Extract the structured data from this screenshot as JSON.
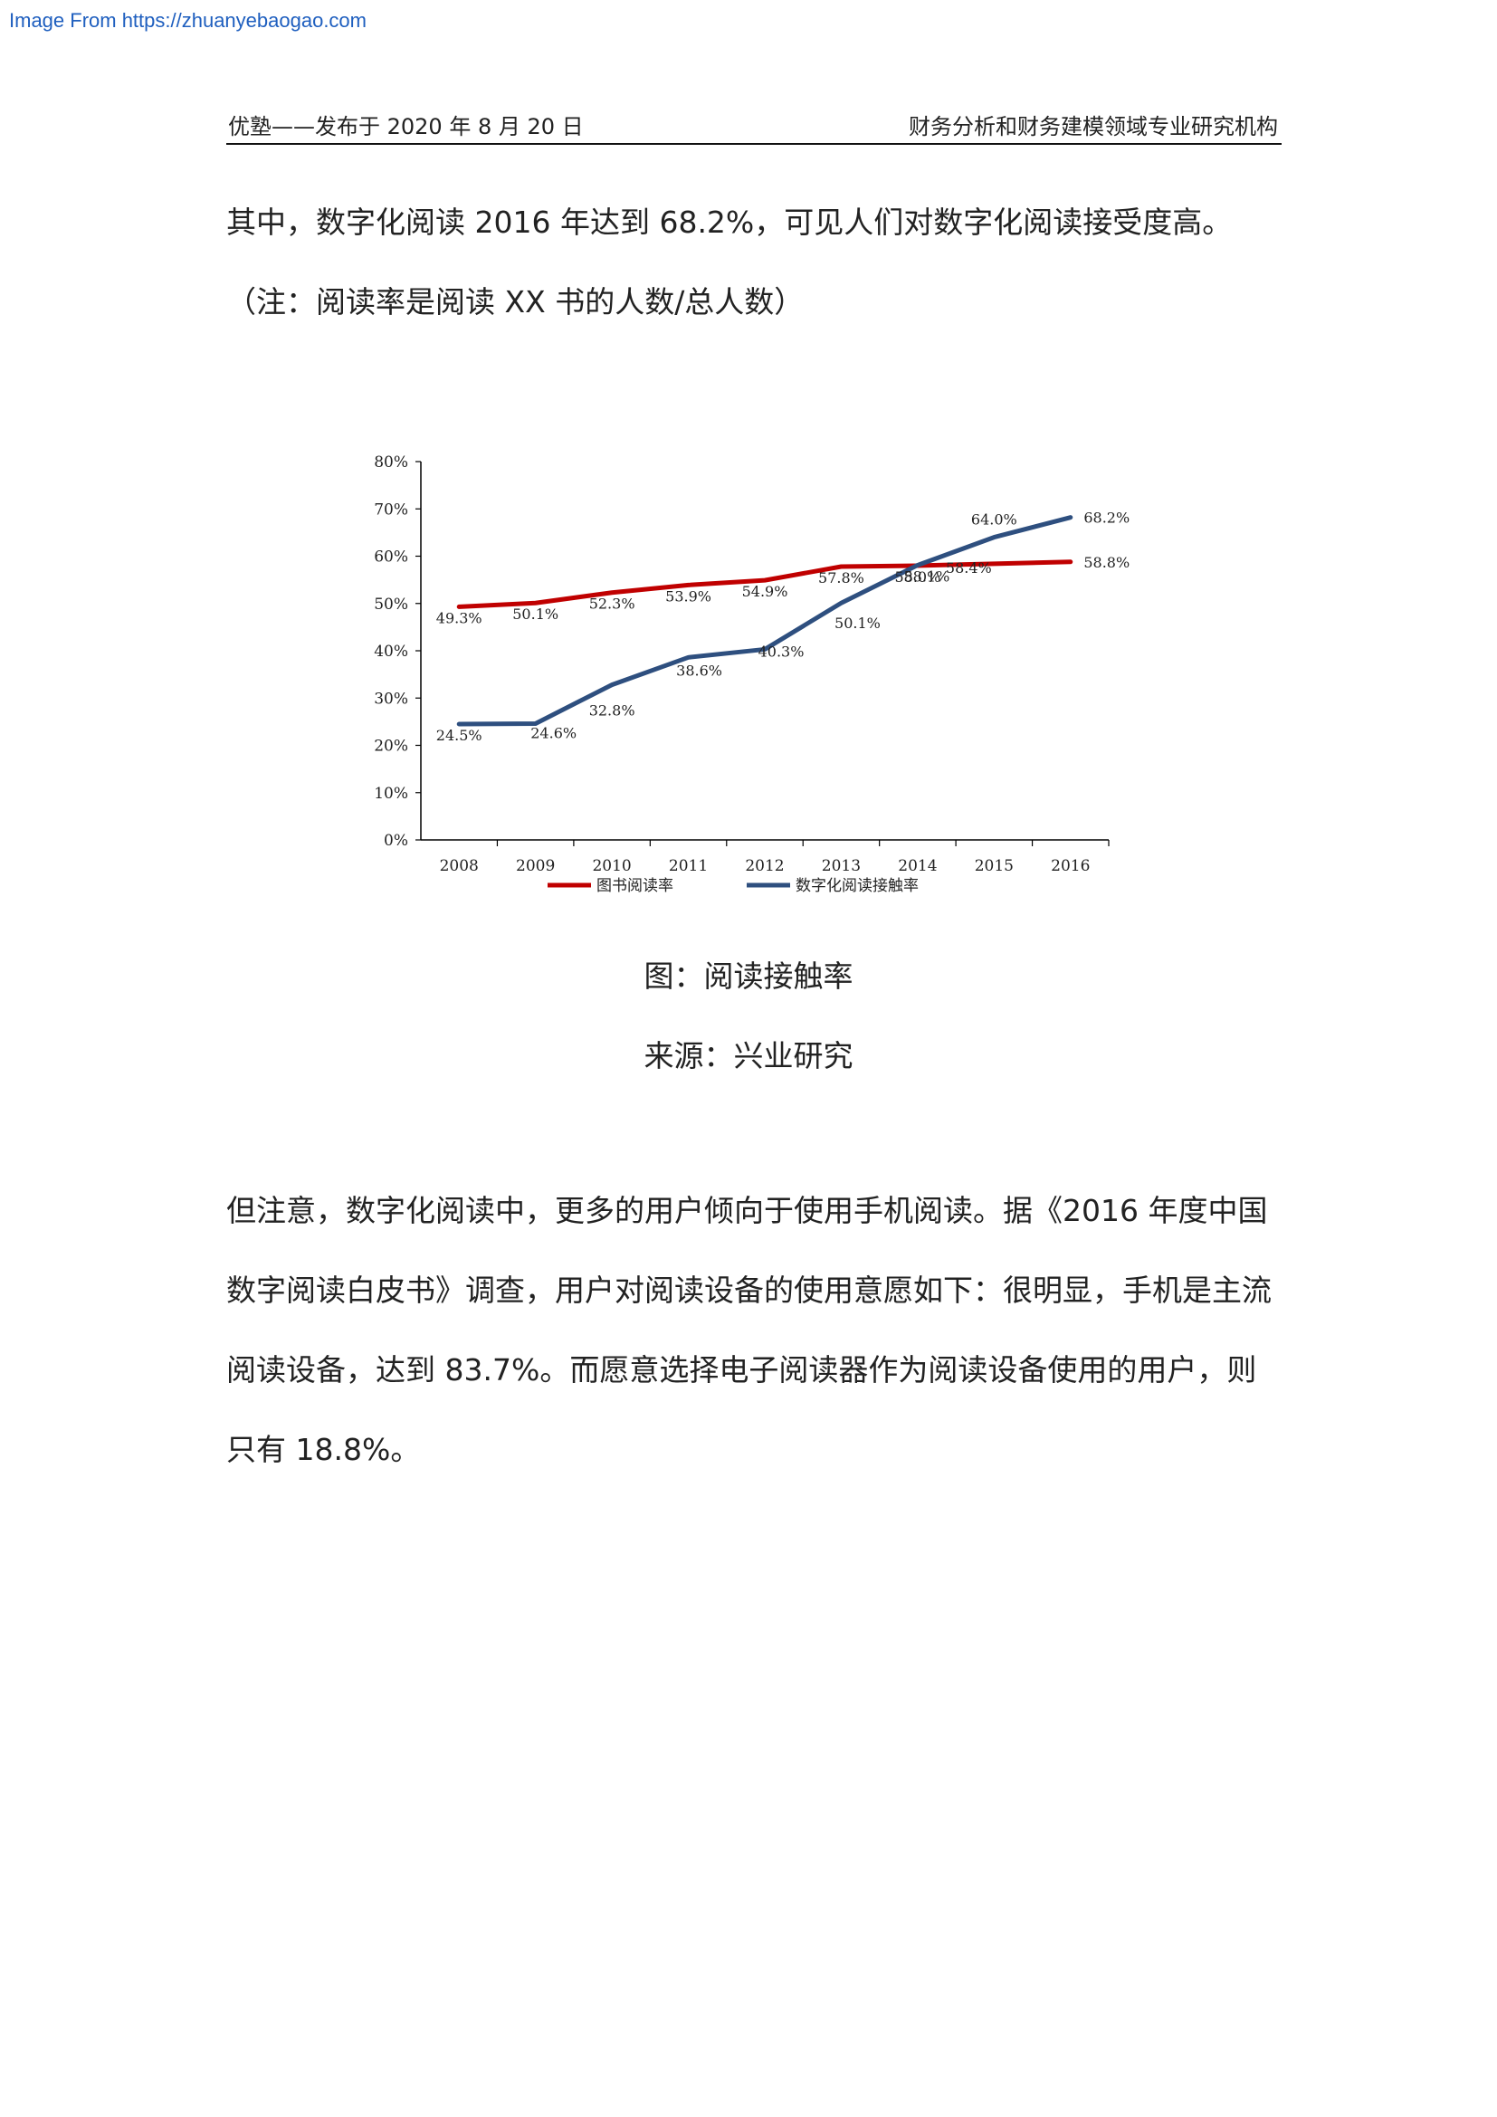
{
  "watermark": "Image From https://zhuanyebaogao.com",
  "header": {
    "left": "优塾——发布于 2020 年 8 月 20 日",
    "right": "财务分析和财务建模领域专业研究机构"
  },
  "intro": {
    "line1": "其中，数字化阅读  2016  年达到  68.2%，可见人们对数字化阅读接受度高。",
    "line2": "（注：阅读率是阅读 XX 书的人数/总人数）"
  },
  "caption": {
    "figure": "图：阅读接触率",
    "source": "来源：兴业研究"
  },
  "body_text": "但注意，数字化阅读中，更多的用户倾向于使用手机阅读。据《2016 年度中国数字阅读白皮书》调查，用户对阅读设备的使用意愿如下：很明显，手机是主流阅读设备，达到  83.7%。而愿意选择电子阅读器作为阅读设备使用的用户，则只有 18.8%。",
  "chart_data": {
    "type": "line",
    "title": "",
    "xlabel": "",
    "ylabel": "",
    "categories": [
      "2008",
      "2009",
      "2010",
      "2011",
      "2012",
      "2013",
      "2014",
      "2015",
      "2016"
    ],
    "ylim": [
      0,
      80
    ],
    "yticks": [
      "0%",
      "10%",
      "20%",
      "30%",
      "40%",
      "50%",
      "60%",
      "70%",
      "80%"
    ],
    "grid": false,
    "legend_position": "bottom",
    "series": [
      {
        "name": "图书阅读率",
        "color": "#c00000",
        "values": [
          49.3,
          50.1,
          52.3,
          53.9,
          54.9,
          57.8,
          58.0,
          58.4,
          58.8
        ],
        "labels": [
          "49.3%",
          "50.1%",
          "52.3%",
          "53.9%",
          "54.9%",
          "57.8%",
          "58.0%",
          "58.4%",
          "58.8%"
        ]
      },
      {
        "name": "数字化阅读接触率",
        "color": "#2e4f7f",
        "values": [
          24.5,
          24.6,
          32.8,
          38.6,
          40.3,
          50.1,
          58.1,
          64.0,
          68.2
        ],
        "labels": [
          "24.5%",
          "24.6%",
          "32.8%",
          "38.6%",
          "40.3%",
          "50.1%",
          "58.1%",
          "64.0%",
          "68.2%"
        ]
      }
    ]
  }
}
